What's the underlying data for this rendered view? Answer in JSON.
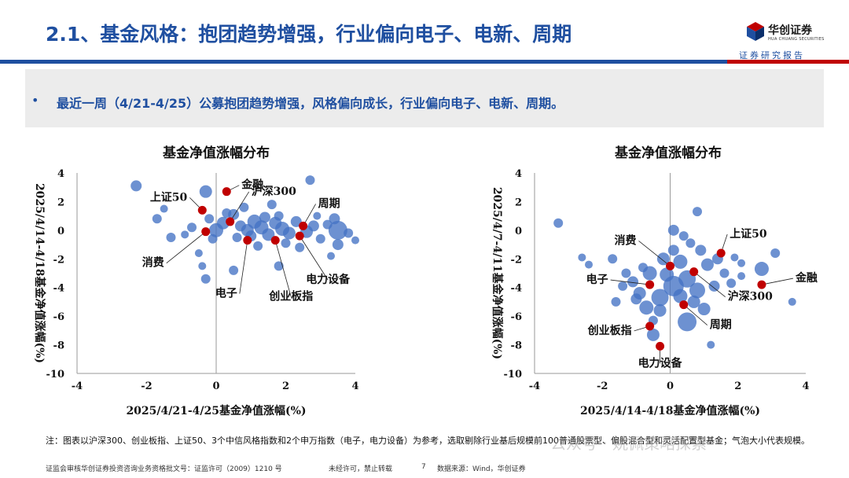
{
  "header": {
    "title": "2.1、基金风格：抱团趋势增强，行业偏向电子、电新、周期",
    "logo_cn": "华创证券",
    "logo_en": "HUA CHUANG SECURITIES",
    "report_label": "证券研究报告"
  },
  "summary": {
    "bullet": "•",
    "text": "最近一周（4/21-4/25）公募抱团趋势增强，风格偏向成长，行业偏向电子、电新、周期。"
  },
  "chart_data": [
    {
      "type": "scatter",
      "title": "基金净值涨幅分布",
      "xlabel": "2025/4/21-4/25基金净值涨幅(%)",
      "ylabel": "2025/4/14-4/18基金净值涨幅(%)",
      "xlim": [
        -4,
        4
      ],
      "ylim": [
        -10,
        4
      ],
      "xticks": [
        "-4",
        "-2",
        "0",
        "2",
        "4"
      ],
      "yticks": [
        "4",
        "2",
        "0",
        "-2",
        "-4",
        "-6",
        "-8",
        "-10"
      ],
      "grid": false,
      "bubble_color": "#4472c4",
      "marker_color": "#c00000",
      "highlight": [
        {
          "label": "金融",
          "x": 0.3,
          "y": 2.7
        },
        {
          "label": "上证50",
          "x": -0.4,
          "y": 1.4
        },
        {
          "label": "沪深300",
          "x": 0.4,
          "y": 0.6
        },
        {
          "label": "周期",
          "x": 2.5,
          "y": 0.3
        },
        {
          "label": "消费",
          "x": -0.3,
          "y": -0.1
        },
        {
          "label": "电子",
          "x": 0.9,
          "y": -0.7
        },
        {
          "label": "创业板指",
          "x": 1.7,
          "y": -0.7
        },
        {
          "label": "电力设备",
          "x": 2.4,
          "y": -0.4
        }
      ],
      "bubbles": [
        {
          "x": -2.3,
          "y": 3.1,
          "s": 7
        },
        {
          "x": 2.7,
          "y": 3.5,
          "s": 6
        },
        {
          "x": -0.3,
          "y": 2.7,
          "s": 8
        },
        {
          "x": -1.7,
          "y": 0.8,
          "s": 6
        },
        {
          "x": -1.5,
          "y": 1.5,
          "s": 5
        },
        {
          "x": -1.3,
          "y": -0.5,
          "s": 6
        },
        {
          "x": -0.4,
          "y": -2.5,
          "s": 5
        },
        {
          "x": -0.3,
          "y": -3.4,
          "s": 6
        },
        {
          "x": -0.5,
          "y": -1.6,
          "s": 5
        },
        {
          "x": 0.5,
          "y": -2.8,
          "s": 6
        },
        {
          "x": 1.8,
          "y": -2.5,
          "s": 6
        },
        {
          "x": 3.3,
          "y": -1.8,
          "s": 5
        },
        {
          "x": 3.5,
          "y": -1.0,
          "s": 7
        },
        {
          "x": 4.0,
          "y": -0.7,
          "s": 5
        },
        {
          "x": 3.4,
          "y": 0.8,
          "s": 7
        },
        {
          "x": 3.5,
          "y": 0.0,
          "s": 12
        },
        {
          "x": 3.2,
          "y": 0.4,
          "s": 6
        },
        {
          "x": 3.0,
          "y": -0.6,
          "s": 6
        },
        {
          "x": 0.0,
          "y": 0.0,
          "s": 9
        },
        {
          "x": 0.2,
          "y": 0.5,
          "s": 8
        },
        {
          "x": 0.5,
          "y": 1.1,
          "s": 7
        },
        {
          "x": 0.7,
          "y": 0.3,
          "s": 7
        },
        {
          "x": 0.9,
          "y": 0.0,
          "s": 8
        },
        {
          "x": 1.1,
          "y": 0.6,
          "s": 9
        },
        {
          "x": 1.3,
          "y": 0.2,
          "s": 9
        },
        {
          "x": 1.5,
          "y": -0.3,
          "s": 8
        },
        {
          "x": 1.7,
          "y": 0.5,
          "s": 8
        },
        {
          "x": 1.9,
          "y": 0.1,
          "s": 9
        },
        {
          "x": 2.1,
          "y": -0.2,
          "s": 8
        },
        {
          "x": 2.3,
          "y": 0.6,
          "s": 7
        },
        {
          "x": 2.6,
          "y": -0.1,
          "s": 8
        },
        {
          "x": 2.8,
          "y": 0.3,
          "s": 7
        },
        {
          "x": 1.0,
          "y": -0.4,
          "s": 7
        },
        {
          "x": 0.6,
          "y": -0.5,
          "s": 6
        },
        {
          "x": 1.4,
          "y": 0.9,
          "s": 7
        },
        {
          "x": 1.8,
          "y": 1.0,
          "s": 6
        },
        {
          "x": 0.3,
          "y": 1.2,
          "s": 6
        },
        {
          "x": -0.2,
          "y": 0.8,
          "s": 6
        },
        {
          "x": -0.1,
          "y": -0.6,
          "s": 6
        },
        {
          "x": 2.0,
          "y": -0.9,
          "s": 6
        },
        {
          "x": 2.4,
          "y": -1.2,
          "s": 6
        },
        {
          "x": 1.2,
          "y": -1.1,
          "s": 6
        },
        {
          "x": 0.8,
          "y": 1.6,
          "s": 6
        },
        {
          "x": 1.6,
          "y": 1.8,
          "s": 6
        },
        {
          "x": 2.9,
          "y": 1.0,
          "s": 5
        },
        {
          "x": -0.7,
          "y": 0.2,
          "s": 6
        },
        {
          "x": -0.9,
          "y": -0.3,
          "s": 5
        },
        {
          "x": 3.8,
          "y": -0.2,
          "s": 6
        }
      ]
    },
    {
      "type": "scatter",
      "title": "基金净值涨幅分布",
      "xlabel": "2025/4/14-4/18基金净值涨幅(%)",
      "ylabel": "2025/4/7-4/11基金净值涨幅(%)",
      "xlim": [
        -4,
        4
      ],
      "ylim": [
        -10,
        4
      ],
      "xticks": [
        "-4",
        "-2",
        "0",
        "2",
        "4"
      ],
      "yticks": [
        "4",
        "2",
        "0",
        "-2",
        "-4",
        "-6",
        "-8",
        "-10"
      ],
      "grid": false,
      "bubble_color": "#4472c4",
      "marker_color": "#c00000",
      "highlight": [
        {
          "label": "上证50",
          "x": 1.5,
          "y": -1.6
        },
        {
          "label": "消费",
          "x": 0.0,
          "y": -2.5
        },
        {
          "label": "金融",
          "x": 2.7,
          "y": -3.8
        },
        {
          "label": "电子",
          "x": -0.6,
          "y": -3.8
        },
        {
          "label": "沪深300",
          "x": 0.7,
          "y": -2.9
        },
        {
          "label": "周期",
          "x": 0.4,
          "y": -5.2
        },
        {
          "label": "创业板指",
          "x": -0.6,
          "y": -6.7
        },
        {
          "label": "电力设备",
          "x": -0.3,
          "y": -8.1
        }
      ],
      "bubbles": [
        {
          "x": -3.3,
          "y": 0.5,
          "s": 6
        },
        {
          "x": 0.8,
          "y": 1.3,
          "s": 6
        },
        {
          "x": 0.1,
          "y": 0.0,
          "s": 7
        },
        {
          "x": 0.4,
          "y": -0.4,
          "s": 6
        },
        {
          "x": -2.6,
          "y": -1.9,
          "s": 5
        },
        {
          "x": -2.4,
          "y": -2.4,
          "s": 5
        },
        {
          "x": -1.7,
          "y": -2.0,
          "s": 6
        },
        {
          "x": 2.1,
          "y": -2.3,
          "s": 5
        },
        {
          "x": 3.1,
          "y": -1.6,
          "s": 6
        },
        {
          "x": 2.7,
          "y": -2.7,
          "s": 9
        },
        {
          "x": 2.1,
          "y": -3.2,
          "s": 5
        },
        {
          "x": 3.6,
          "y": -5.0,
          "s": 5
        },
        {
          "x": 1.2,
          "y": -8.0,
          "s": 5
        },
        {
          "x": -0.5,
          "y": -6.3,
          "s": 6
        },
        {
          "x": -0.5,
          "y": -7.3,
          "s": 8
        },
        {
          "x": -1.6,
          "y": -5.0,
          "s": 6
        },
        {
          "x": -1.1,
          "y": -3.6,
          "s": 7
        },
        {
          "x": -0.9,
          "y": -4.4,
          "s": 8
        },
        {
          "x": -0.6,
          "y": -3.0,
          "s": 9
        },
        {
          "x": -0.2,
          "y": -2.0,
          "s": 8
        },
        {
          "x": 0.1,
          "y": -1.4,
          "s": 7
        },
        {
          "x": 0.3,
          "y": -2.2,
          "s": 9
        },
        {
          "x": 0.5,
          "y": -3.4,
          "s": 11
        },
        {
          "x": 0.8,
          "y": -4.2,
          "s": 10
        },
        {
          "x": 0.1,
          "y": -3.9,
          "s": 13
        },
        {
          "x": -0.3,
          "y": -4.7,
          "s": 11
        },
        {
          "x": -0.7,
          "y": -5.4,
          "s": 9
        },
        {
          "x": 0.5,
          "y": -6.4,
          "s": 12
        },
        {
          "x": 1.0,
          "y": -5.5,
          "s": 8
        },
        {
          "x": 1.3,
          "y": -3.9,
          "s": 7
        },
        {
          "x": 1.1,
          "y": -2.4,
          "s": 8
        },
        {
          "x": 0.9,
          "y": -1.4,
          "s": 7
        },
        {
          "x": 1.4,
          "y": -2.0,
          "s": 7
        },
        {
          "x": 1.6,
          "y": -3.0,
          "s": 6
        },
        {
          "x": 0.7,
          "y": -5.0,
          "s": 8
        },
        {
          "x": -0.3,
          "y": -5.6,
          "s": 8
        },
        {
          "x": -1.0,
          "y": -4.8,
          "s": 7
        },
        {
          "x": -1.3,
          "y": -3.0,
          "s": 6
        },
        {
          "x": 0.3,
          "y": -4.6,
          "s": 9
        },
        {
          "x": -0.1,
          "y": -3.1,
          "s": 9
        },
        {
          "x": 1.8,
          "y": -3.7,
          "s": 6
        },
        {
          "x": -0.8,
          "y": -2.6,
          "s": 6
        },
        {
          "x": 0.6,
          "y": -0.9,
          "s": 6
        },
        {
          "x": 1.9,
          "y": -1.9,
          "s": 5
        },
        {
          "x": -1.4,
          "y": -3.9,
          "s": 6
        }
      ]
    }
  ],
  "note": "注：图表以沪深300、创业板指、上证50、3个中信风格指数和2个申万指数（电子，电力设备）为参考，选取剔除行业基后规模前100普通股票型、偏股混合型和灵活配置型基金；气泡大小代表规模。",
  "footer": {
    "license": "证监会审核华创证券投资咨询业务资格批文号：证监许可（2009）1210 号",
    "restriction": "未经许可，禁止转载",
    "page": "7",
    "source": "数据来源：Wind，华创证券"
  },
  "watermark": "公众号 · 姚佩策略探索"
}
